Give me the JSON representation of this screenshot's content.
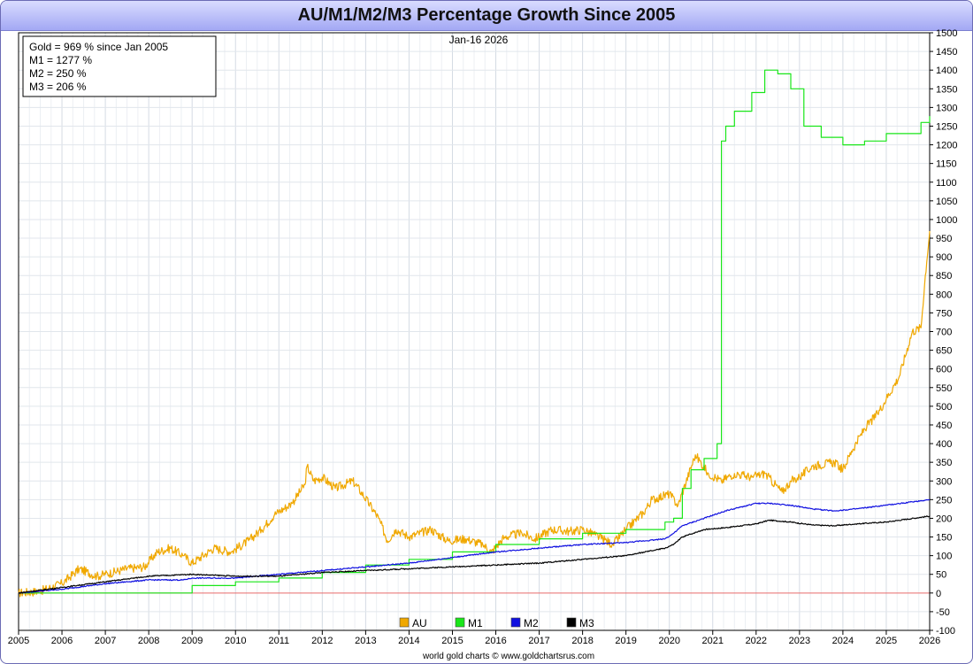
{
  "chart_data": {
    "type": "line",
    "title": "AU/M1/M2/M3 Percentage Growth Since 2005",
    "date_label": "Jan-16  2026",
    "info_box": [
      "Gold = 969 % since Jan 2005",
      "M1 = 1277 %",
      "M2 = 250 %",
      "M3 = 206 %"
    ],
    "footer": "world gold charts © www.goldchartsrus.com",
    "xlim": [
      2005,
      2026
    ],
    "ylim": [
      -100,
      1500
    ],
    "x_ticks": [
      "2005",
      "2006",
      "2007",
      "2008",
      "2009",
      "2010",
      "2011",
      "2012",
      "2013",
      "2014",
      "2015",
      "2016",
      "2017",
      "2018",
      "2019",
      "2020",
      "2021",
      "2022",
      "2023",
      "2024",
      "2025",
      "2026"
    ],
    "y_ticks": [
      -100,
      -50,
      0,
      50,
      100,
      150,
      200,
      250,
      300,
      350,
      400,
      450,
      500,
      550,
      600,
      650,
      700,
      750,
      800,
      850,
      900,
      950,
      1000,
      1050,
      1100,
      1150,
      1200,
      1250,
      1300,
      1350,
      1400,
      1450,
      1500
    ],
    "legend": [
      {
        "name": "AU",
        "color": "#f0a800"
      },
      {
        "name": "M1",
        "color": "#19e619"
      },
      {
        "name": "M2",
        "color": "#1010e0"
      },
      {
        "name": "M3",
        "color": "#000000"
      }
    ],
    "series": [
      {
        "name": "AU",
        "color": "#f0a800",
        "noise": 12,
        "x": [
          2005,
          2005.5,
          2006,
          2006.4,
          2006.8,
          2007,
          2007.5,
          2007.9,
          2008.2,
          2008.5,
          2008.8,
          2009,
          2009.5,
          2009.9,
          2010.3,
          2010.6,
          2010.9,
          2011.3,
          2011.6,
          2011.65,
          2011.8,
          2012,
          2012.3,
          2012.7,
          2012.9,
          2013.3,
          2013.5,
          2013.7,
          2014,
          2014.5,
          2014.9,
          2015.3,
          2015.7,
          2015.9,
          2016.2,
          2016.6,
          2016.9,
          2017.3,
          2017.7,
          2018,
          2018.3,
          2018.7,
          2019,
          2019.4,
          2019.6,
          2020,
          2020.2,
          2020.6,
          2020.9,
          2021.2,
          2021.5,
          2021.9,
          2022.2,
          2022.6,
          2022.8,
          2023,
          2023.3,
          2023.8,
          2024,
          2024.2,
          2024.5,
          2024.8,
          2025,
          2025.3,
          2025.6,
          2025.8,
          2025.9,
          2026
        ],
        "y": [
          0,
          5,
          25,
          65,
          45,
          50,
          65,
          70,
          110,
          120,
          100,
          80,
          120,
          110,
          140,
          170,
          210,
          240,
          290,
          340,
          300,
          310,
          280,
          300,
          270,
          200,
          140,
          170,
          150,
          170,
          140,
          145,
          130,
          110,
          150,
          160,
          145,
          170,
          165,
          170,
          155,
          130,
          170,
          215,
          250,
          265,
          235,
          370,
          320,
          300,
          320,
          310,
          320,
          270,
          300,
          310,
          340,
          350,
          330,
          380,
          440,
          480,
          520,
          580,
          700,
          710,
          850,
          969
        ]
      },
      {
        "name": "M1",
        "color": "#19e619",
        "step": true,
        "x": [
          2005,
          2008.5,
          2009,
          2010,
          2011,
          2012,
          2013,
          2014,
          2015,
          2016,
          2017,
          2018,
          2019,
          2019.9,
          2020.1,
          2020.3,
          2020.5,
          2020.8,
          2021.1,
          2021.2,
          2021.3,
          2021.5,
          2021.9,
          2022.2,
          2022.5,
          2022.8,
          2023.1,
          2023.5,
          2024.0,
          2024.5,
          2025.0,
          2025.8,
          2026
        ],
        "y": [
          0,
          0,
          20,
          30,
          40,
          55,
          75,
          90,
          110,
          130,
          145,
          160,
          170,
          190,
          200,
          280,
          330,
          360,
          400,
          1210,
          1250,
          1290,
          1340,
          1400,
          1390,
          1350,
          1250,
          1220,
          1200,
          1210,
          1230,
          1260,
          1277
        ]
      },
      {
        "name": "M2",
        "color": "#1010e0",
        "noise": 1.5,
        "x": [
          2005,
          2006,
          2007,
          2008,
          2008.8,
          2009,
          2010,
          2011,
          2012,
          2013,
          2014,
          2015,
          2016,
          2017,
          2018,
          2019,
          2019.9,
          2020.1,
          2020.3,
          2020.8,
          2021.3,
          2022.0,
          2022.3,
          2022.8,
          2023.3,
          2023.8,
          2024.3,
          2025,
          2026
        ],
        "y": [
          0,
          10,
          25,
          35,
          35,
          40,
          40,
          50,
          60,
          70,
          80,
          95,
          110,
          120,
          130,
          135,
          145,
          160,
          180,
          200,
          220,
          240,
          240,
          235,
          225,
          220,
          225,
          235,
          250
        ]
      },
      {
        "name": "M3",
        "color": "#000000",
        "noise": 1.5,
        "x": [
          2005,
          2006,
          2007,
          2008,
          2009,
          2010,
          2011,
          2012,
          2013,
          2014,
          2015,
          2016,
          2017,
          2018,
          2019,
          2019.9,
          2020.1,
          2020.3,
          2020.8,
          2021.3,
          2022.0,
          2022.3,
          2022.8,
          2023.3,
          2023.8,
          2024.3,
          2025,
          2026
        ],
        "y": [
          0,
          15,
          30,
          45,
          50,
          45,
          45,
          55,
          60,
          65,
          70,
          75,
          80,
          90,
          100,
          120,
          130,
          150,
          170,
          175,
          185,
          195,
          190,
          182,
          180,
          185,
          190,
          206
        ]
      }
    ]
  }
}
